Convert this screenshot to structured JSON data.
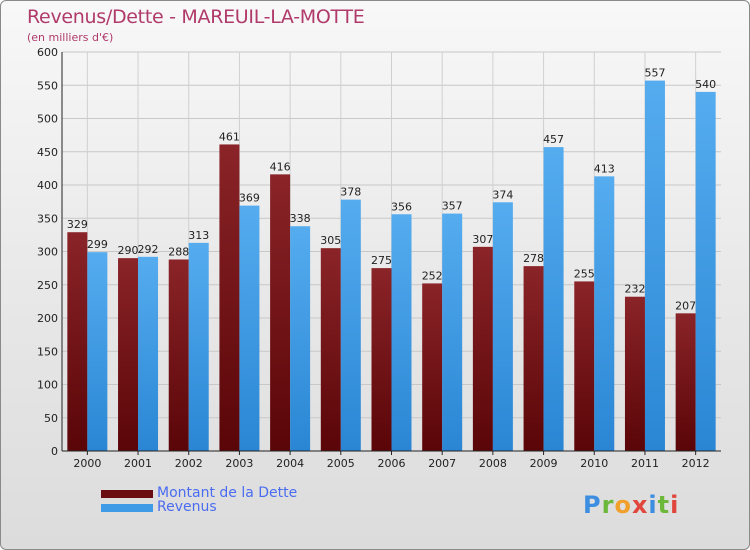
{
  "title": "Revenus/Dette - MAREUIL-LA-MOTTE",
  "subtitle": "(en milliers d'€)",
  "logo": [
    "P",
    "r",
    "o",
    "x",
    "i",
    "t",
    "i"
  ],
  "colors": {
    "dette": "#7a1a1e",
    "revenus": "#3f9be6",
    "title": "#b03a6a",
    "legend_text": "#4a6cf0"
  },
  "legend": [
    {
      "label": "Montant de la Dette",
      "color": "#6b0e12"
    },
    {
      "label": "Revenus",
      "color": "#3f9be6"
    }
  ],
  "chart_data": {
    "type": "bar",
    "categories": [
      "2000",
      "2001",
      "2002",
      "2003",
      "2004",
      "2005",
      "2006",
      "2007",
      "2008",
      "2009",
      "2010",
      "2011",
      "2012"
    ],
    "series": [
      {
        "name": "Montant de la Dette",
        "values": [
          329,
          290,
          288,
          461,
          416,
          305,
          275,
          252,
          307,
          278,
          255,
          232,
          207
        ]
      },
      {
        "name": "Revenus",
        "values": [
          299,
          292,
          313,
          369,
          338,
          378,
          356,
          357,
          374,
          457,
          413,
          557,
          540
        ]
      }
    ],
    "ylim": [
      0,
      600
    ],
    "yticks": [
      0,
      50,
      100,
      150,
      200,
      250,
      300,
      350,
      400,
      450,
      500,
      550,
      600
    ],
    "grid": true,
    "legend_position": "bottom-left"
  }
}
